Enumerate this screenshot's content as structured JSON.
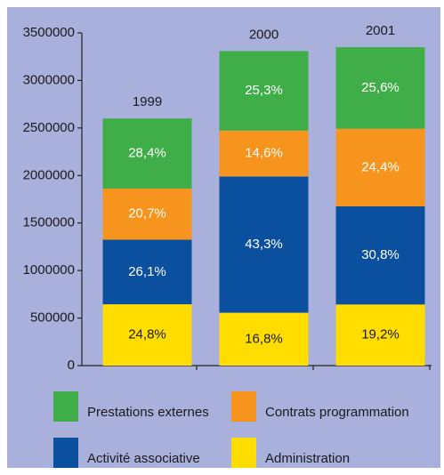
{
  "chart_data": {
    "type": "bar",
    "stacked": true,
    "categories": [
      "1999",
      "2000",
      "2001"
    ],
    "series": [
      {
        "name": "Administration",
        "color": "#ffdd00",
        "values": [
          645000,
          556000,
          643000
        ],
        "value_labels": [
          "24,8%",
          "16,8%",
          "19,2%"
        ]
      },
      {
        "name": "Activité associative",
        "color": "#0b4f9f",
        "values": [
          679000,
          1433000,
          1032000
        ],
        "value_labels": [
          "26,1%",
          "43,3%",
          "30,8%"
        ]
      },
      {
        "name": "Contrats programmation",
        "color": "#f7941d",
        "values": [
          538000,
          483000,
          817000
        ],
        "value_labels": [
          "20,7%",
          "14,6%",
          "24,4%"
        ]
      },
      {
        "name": "Prestations externes",
        "color": "#3fae49",
        "values": [
          738000,
          837000,
          858000
        ],
        "value_labels": [
          "28,4%",
          "25,3%",
          "25,6%"
        ]
      }
    ],
    "ylim": [
      0,
      3500000
    ],
    "yticks": [
      0,
      500000,
      1000000,
      1500000,
      2000000,
      2500000,
      3000000,
      3500000
    ],
    "background": "#a9b0dc"
  }
}
